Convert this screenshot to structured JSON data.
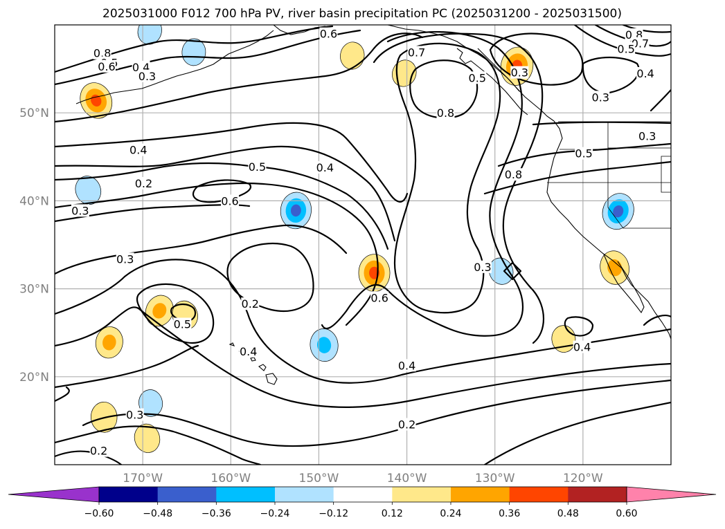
{
  "title": "2025031000 F012 700 hPa PV, river basin precipitation PC (2025031200 - 2025031500)",
  "chart_data": {
    "type": "contour-map",
    "projection": "PlateCarree",
    "lon_range": [
      -180,
      -110
    ],
    "lat_range": [
      10,
      60
    ],
    "x_ticks": [
      {
        "value": -170,
        "label": "170°W"
      },
      {
        "value": -160,
        "label": "160°W"
      },
      {
        "value": -150,
        "label": "150°W"
      },
      {
        "value": -140,
        "label": "140°W"
      },
      {
        "value": -130,
        "label": "130°W"
      },
      {
        "value": -120,
        "label": "120°W"
      }
    ],
    "y_ticks": [
      {
        "value": 20,
        "label": "20°N"
      },
      {
        "value": 30,
        "label": "30°N"
      },
      {
        "value": 40,
        "label": "40°N"
      },
      {
        "value": 50,
        "label": "50°N"
      }
    ],
    "grid": true,
    "contour_field": "700 hPa PV",
    "contour_levels": [
      0.2,
      0.3,
      0.4,
      0.5,
      0.6,
      0.7,
      0.8
    ],
    "contour_labels": [
      {
        "text": "0.6",
        "lon": -148.9,
        "lat": 59.0
      },
      {
        "text": "0.8",
        "lon": -174.6,
        "lat": 56.8
      },
      {
        "text": "0.5",
        "lon": -173.8,
        "lat": 55.7
      },
      {
        "text": "0.6",
        "lon": -174.1,
        "lat": 55.3
      },
      {
        "text": "0.4",
        "lon": -170.2,
        "lat": 55.2
      },
      {
        "text": "0.3",
        "lon": -169.5,
        "lat": 54.2
      },
      {
        "text": "0.7",
        "lon": -138.9,
        "lat": 56.9
      },
      {
        "text": "0.5",
        "lon": -132.0,
        "lat": 54.0
      },
      {
        "text": "0.8",
        "lon": -135.6,
        "lat": 50.0
      },
      {
        "text": "0.3",
        "lon": -127.2,
        "lat": 54.6
      },
      {
        "text": "0.8",
        "lon": -114.2,
        "lat": 58.9
      },
      {
        "text": "0.7",
        "lon": -113.5,
        "lat": 57.9
      },
      {
        "text": "0.5",
        "lon": -115.1,
        "lat": 57.3
      },
      {
        "text": "0.4",
        "lon": -112.9,
        "lat": 54.5
      },
      {
        "text": "0.3",
        "lon": -118.0,
        "lat": 51.8
      },
      {
        "text": "0.3",
        "lon": -112.7,
        "lat": 47.4
      },
      {
        "text": "0.5",
        "lon": -119.9,
        "lat": 45.4
      },
      {
        "text": "0.4",
        "lon": -170.5,
        "lat": 45.8
      },
      {
        "text": "0.5",
        "lon": -157.0,
        "lat": 43.9
      },
      {
        "text": "0.4",
        "lon": -149.3,
        "lat": 43.8
      },
      {
        "text": "0.8",
        "lon": -127.9,
        "lat": 43.0
      },
      {
        "text": "0.2",
        "lon": -169.9,
        "lat": 42.0
      },
      {
        "text": "0.6",
        "lon": -160.1,
        "lat": 40.0
      },
      {
        "text": "0.3",
        "lon": -177.1,
        "lat": 38.9
      },
      {
        "text": "0.3",
        "lon": -172.0,
        "lat": 33.4
      },
      {
        "text": "0.3",
        "lon": -131.4,
        "lat": 32.5
      },
      {
        "text": "0.6",
        "lon": -143.1,
        "lat": 29.0
      },
      {
        "text": "0.2",
        "lon": -157.8,
        "lat": 28.3
      },
      {
        "text": "0.5",
        "lon": -165.5,
        "lat": 26.0
      },
      {
        "text": "0.4",
        "lon": -158.0,
        "lat": 22.9
      },
      {
        "text": "0.4",
        "lon": -120.1,
        "lat": 23.4
      },
      {
        "text": "0.4",
        "lon": -140.0,
        "lat": 21.3
      },
      {
        "text": "0.3",
        "lon": -170.9,
        "lat": 15.7
      },
      {
        "text": "0.2",
        "lon": -140.0,
        "lat": 14.6
      },
      {
        "text": "0.2",
        "lon": -175.0,
        "lat": 11.6
      }
    ],
    "fill_field": "river basin precipitation PC",
    "fill_blobs": [
      {
        "lon": -175.3,
        "lat": 51.4,
        "value": 0.4
      },
      {
        "lon": -127.5,
        "lat": 55.3,
        "value": 0.45
      },
      {
        "lon": -143.7,
        "lat": 31.8,
        "value": 0.42
      },
      {
        "lon": -116.4,
        "lat": 32.4,
        "value": 0.33
      },
      {
        "lon": -168.1,
        "lat": 27.5,
        "value": 0.27
      },
      {
        "lon": -173.8,
        "lat": 23.9,
        "value": 0.27
      },
      {
        "lon": -174.4,
        "lat": 15.4,
        "value": 0.24
      },
      {
        "lon": -169.5,
        "lat": 13.0,
        "value": 0.2
      },
      {
        "lon": -140.3,
        "lat": 54.5,
        "value": 0.15
      },
      {
        "lon": -146.2,
        "lat": 56.5,
        "value": 0.16
      },
      {
        "lon": -122.2,
        "lat": 24.3,
        "value": 0.15
      },
      {
        "lon": -165.2,
        "lat": 27.0,
        "value": 0.2
      },
      {
        "lon": -116.0,
        "lat": 38.8,
        "value": -0.4
      },
      {
        "lon": -152.6,
        "lat": 38.9,
        "value": -0.4
      },
      {
        "lon": -149.4,
        "lat": 23.6,
        "value": -0.3
      },
      {
        "lon": -176.2,
        "lat": 41.2,
        "value": -0.2
      },
      {
        "lon": -169.2,
        "lat": 59.3,
        "value": -0.15
      },
      {
        "lon": -164.2,
        "lat": 56.9,
        "value": -0.15
      },
      {
        "lon": -169.1,
        "lat": 17.0,
        "value": -0.15
      },
      {
        "lon": -129.3,
        "lat": 32.0,
        "value": -0.15
      }
    ],
    "colorbar": {
      "orientation": "horizontal",
      "extend": "both",
      "bounds": [
        -0.6,
        -0.48,
        -0.36,
        -0.24,
        -0.12,
        0.12,
        0.24,
        0.36,
        0.48,
        0.6
      ],
      "tick_labels": [
        "−0.60",
        "−0.48",
        "−0.36",
        "−0.24",
        "−0.12",
        "0.12",
        "0.24",
        "0.36",
        "0.48",
        "0.60"
      ],
      "colors": [
        "#9932cc",
        "#00008b",
        "#3a5fcd",
        "#00bfff",
        "#b0e2ff",
        "#ffffff",
        "#ffe88a",
        "#ffa500",
        "#ff4500",
        "#b22222",
        "#ff82ab"
      ]
    }
  }
}
